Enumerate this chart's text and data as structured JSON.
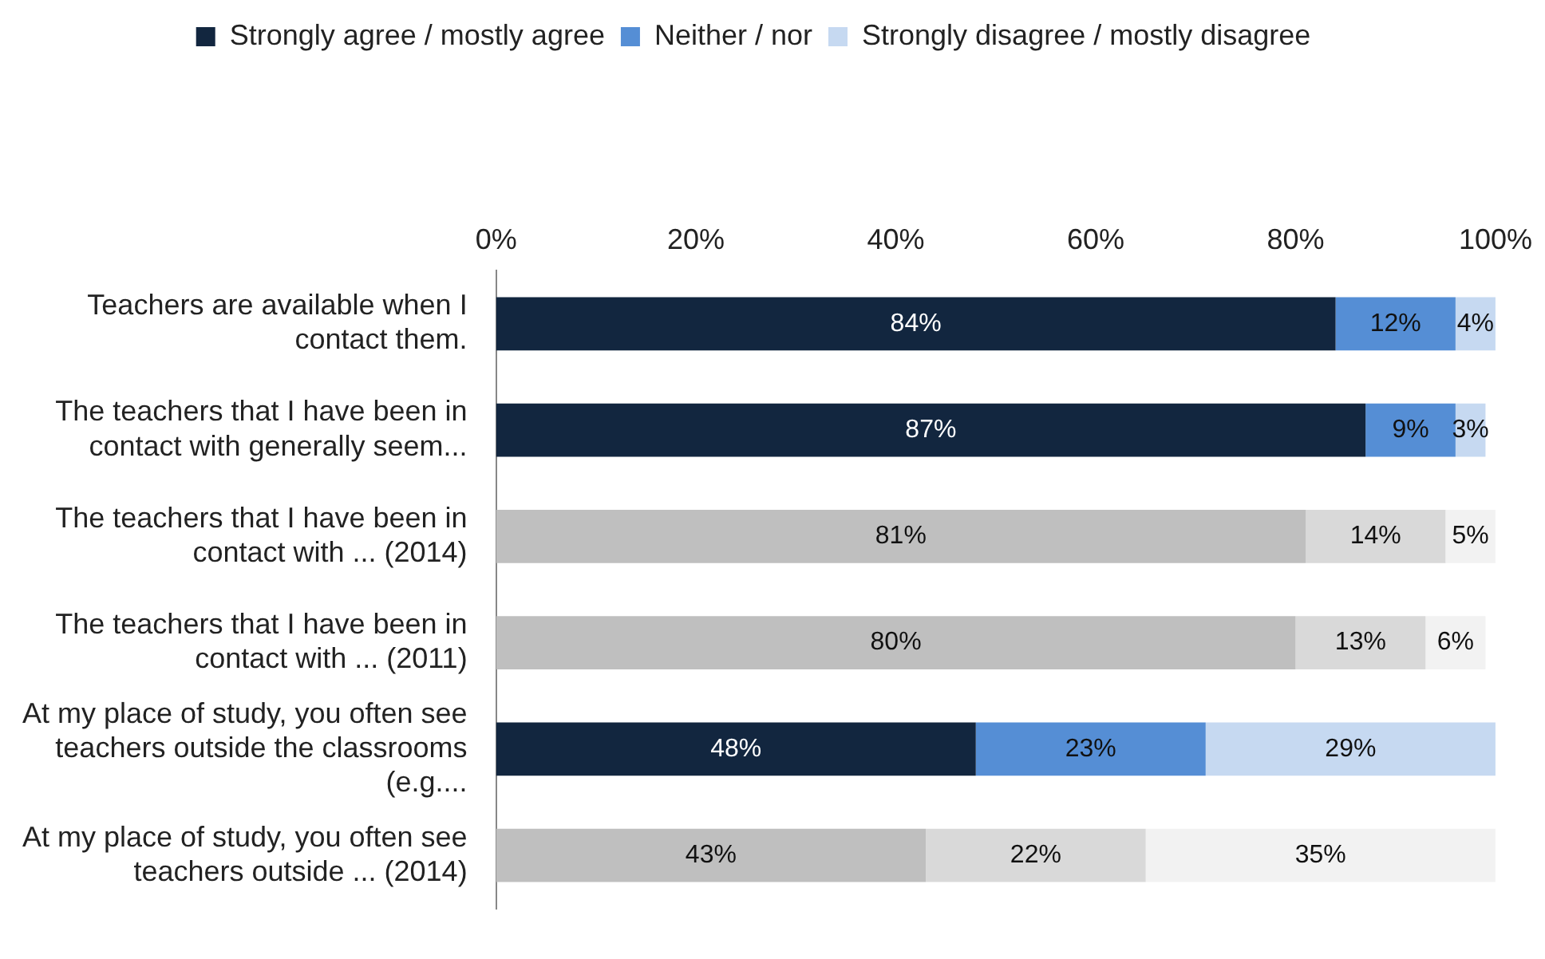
{
  "chart_data": {
    "type": "bar",
    "orientation": "horizontal",
    "stacked": true,
    "legend": "top",
    "grid": false,
    "categories": [
      "Teachers are available when I contact them.",
      "The teachers that I have been in contact with generally seem...",
      "The teachers that I have been in contact with ... (2014)",
      "The teachers that I have been in contact with ... (2011)",
      "At my place of study, you often see teachers outside the classrooms (e.g....",
      "At my place of study, you often see teachers outside ... (2014)"
    ],
    "xlim": [
      0,
      100
    ],
    "xticks": [
      {
        "value": 0,
        "label": "0%"
      },
      {
        "value": 20,
        "label": "20%"
      },
      {
        "value": 40,
        "label": "40%"
      },
      {
        "value": 60,
        "label": "60%"
      },
      {
        "value": 80,
        "label": "80%"
      },
      {
        "value": 100,
        "label": "100%"
      }
    ],
    "series": [
      {
        "name": "Strongly agree / mostly agree",
        "color": "#12263f",
        "colors": [
          "#12263f",
          "#12263f",
          "#bfbfbf",
          "#bfbfbf",
          "#12263f",
          "#bfbfbf"
        ],
        "values": [
          84,
          87,
          81,
          80,
          48,
          43
        ],
        "value_labels": [
          "84%",
          "87%",
          "81%",
          "80%",
          "48%",
          "43%"
        ]
      },
      {
        "name": "Neither / nor",
        "color": "#558ed5",
        "colors": [
          "#558ed5",
          "#558ed5",
          "#d9d9d9",
          "#d9d9d9",
          "#558ed5",
          "#d9d9d9"
        ],
        "values": [
          12,
          9,
          14,
          13,
          23,
          22
        ],
        "value_labels": [
          "12%",
          "9%",
          "14%",
          "13%",
          "23%",
          "22%"
        ]
      },
      {
        "name": "Strongly disagree / mostly disagree",
        "color": "#c6d9f1",
        "colors": [
          "#c6d9f1",
          "#c6d9f1",
          "#f2f2f2",
          "#f2f2f2",
          "#c6d9f1",
          "#f2f2f2"
        ],
        "values": [
          4,
          3,
          5,
          6,
          29,
          35
        ],
        "value_labels": [
          "4%",
          "3%",
          "5%",
          "6%",
          "29%",
          "35%"
        ]
      }
    ]
  }
}
